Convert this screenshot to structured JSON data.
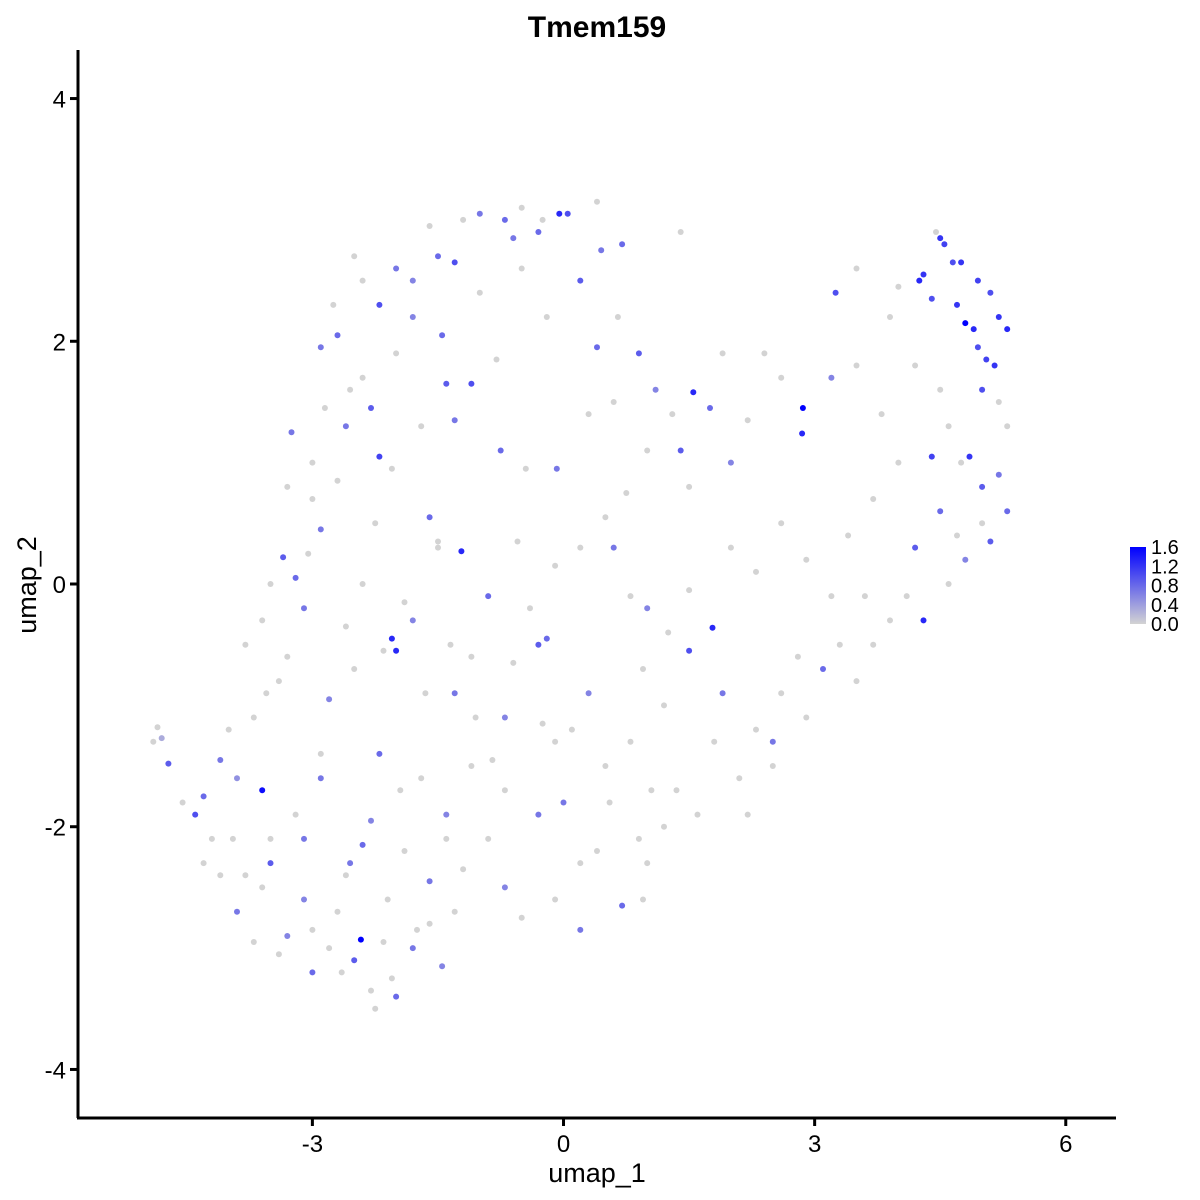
{
  "chart_data": {
    "type": "scatter",
    "title": "Tmem159",
    "xlabel": "umap_1",
    "ylabel": "umap_2",
    "xlim": [
      -5.8,
      6.6
    ],
    "ylim": [
      -4.4,
      4.4
    ],
    "xticks": [
      -3,
      0,
      3,
      6
    ],
    "xtick_labels": [
      "-3",
      "0",
      "3",
      "6"
    ],
    "yticks": [
      -4,
      -2,
      0,
      2,
      4
    ],
    "ytick_labels": [
      "-4",
      "-2",
      "0",
      "2",
      "4"
    ],
    "grid": false,
    "legend": {
      "placement": "right",
      "labels": [
        "1.6",
        "1.2",
        "0.8",
        "0.4",
        "0.0"
      ],
      "values": [
        1.6,
        1.2,
        0.8,
        0.4,
        0.0
      ],
      "min": 0.0,
      "max": 1.6
    },
    "colors": {
      "low": "#d3d3d3",
      "high": "#0000ff"
    },
    "points": [
      [
        -4.9,
        -1.3,
        0.0
      ],
      [
        -4.85,
        -1.18,
        0.0
      ],
      [
        -4.8,
        -1.27,
        0.3
      ],
      [
        -4.72,
        -1.48,
        0.9
      ],
      [
        -4.4,
        -1.9,
        1.0
      ],
      [
        -4.3,
        -1.75,
        0.8
      ],
      [
        -4.2,
        -2.1,
        0.0
      ],
      [
        -4.1,
        -1.45,
        0.7
      ],
      [
        -3.9,
        -1.6,
        0.5
      ],
      [
        -3.6,
        -1.7,
        1.5
      ],
      [
        -3.8,
        -2.4,
        0.0
      ],
      [
        -3.5,
        -2.3,
        0.9
      ],
      [
        -3.3,
        -2.9,
        0.6
      ],
      [
        -3.0,
        -3.2,
        0.8
      ],
      [
        -2.8,
        -3.0,
        0.0
      ],
      [
        -2.42,
        -2.93,
        1.6
      ],
      [
        -2.5,
        -3.1,
        0.9
      ],
      [
        -2.3,
        -3.35,
        0.0
      ],
      [
        -2.25,
        -3.5,
        0.0
      ],
      [
        -2.0,
        -3.4,
        0.8
      ],
      [
        -2.05,
        -3.25,
        0.0
      ],
      [
        -1.8,
        -3.0,
        0.7
      ],
      [
        -1.6,
        -2.8,
        0.0
      ],
      [
        -1.45,
        -3.15,
        0.6
      ],
      [
        -3.1,
        -2.1,
        0.7
      ],
      [
        -2.9,
        -1.6,
        0.7
      ],
      [
        -2.6,
        -2.4,
        0.0
      ],
      [
        -2.3,
        -1.95,
        0.6
      ],
      [
        -2.2,
        -1.4,
        0.8
      ],
      [
        -1.9,
        -2.2,
        0.0
      ],
      [
        -1.7,
        -1.6,
        0.0
      ],
      [
        -1.4,
        -1.9,
        0.6
      ],
      [
        -3.3,
        -0.6,
        0.0
      ],
      [
        -3.1,
        -0.2,
        0.7
      ],
      [
        -2.8,
        -0.95,
        0.6
      ],
      [
        -2.5,
        -0.7,
        0.0
      ],
      [
        -2.05,
        -0.45,
        1.3
      ],
      [
        -2.0,
        -0.55,
        1.3
      ],
      [
        -2.15,
        -0.55,
        0.0
      ],
      [
        -2.4,
        0.0,
        0.0
      ],
      [
        -2.9,
        0.45,
        0.7
      ],
      [
        -3.2,
        0.05,
        0.8
      ],
      [
        -3.35,
        0.22,
        0.9
      ],
      [
        -3.6,
        -0.3,
        0.0
      ],
      [
        -3.4,
        -0.8,
        0.0
      ],
      [
        -1.8,
        -0.3,
        0.6
      ],
      [
        -1.5,
        0.3,
        0.0
      ],
      [
        -1.3,
        -0.9,
        0.7
      ],
      [
        -1.22,
        0.27,
        1.3
      ],
      [
        -1.1,
        -0.6,
        0.0
      ],
      [
        -0.9,
        -0.1,
        0.8
      ],
      [
        -0.7,
        -1.1,
        0.6
      ],
      [
        -0.55,
        0.35,
        0.0
      ],
      [
        -0.3,
        -0.5,
        0.9
      ],
      [
        -0.2,
        -0.45,
        0.8
      ],
      [
        -0.1,
        -1.3,
        0.0
      ],
      [
        0.0,
        -1.8,
        0.7
      ],
      [
        0.2,
        -2.3,
        0.0
      ],
      [
        0.3,
        -0.9,
        0.6
      ],
      [
        0.5,
        -1.5,
        0.0
      ],
      [
        0.7,
        -2.65,
        0.8
      ],
      [
        0.9,
        -2.1,
        0.0
      ],
      [
        1.05,
        -1.7,
        0.0
      ],
      [
        0.6,
        0.3,
        0.7
      ],
      [
        0.8,
        -0.1,
        0.0
      ],
      [
        1.0,
        -0.2,
        0.6
      ],
      [
        1.2,
        -1.0,
        0.0
      ],
      [
        1.5,
        -0.55,
        1.0
      ],
      [
        1.78,
        -0.36,
        1.3
      ],
      [
        1.9,
        -0.9,
        0.7
      ],
      [
        2.1,
        -1.6,
        0.0
      ],
      [
        2.3,
        -1.2,
        0.0
      ],
      [
        2.5,
        -1.3,
        0.7
      ],
      [
        2.6,
        -0.9,
        0.0
      ],
      [
        2.9,
        -1.1,
        0.0
      ],
      [
        3.1,
        -0.7,
        0.8
      ],
      [
        3.5,
        -0.8,
        0.0
      ],
      [
        3.7,
        -0.5,
        0.0
      ],
      [
        3.9,
        -0.3,
        0.0
      ],
      [
        4.3,
        -0.3,
        1.3
      ],
      [
        4.6,
        0.0,
        0.0
      ],
      [
        4.8,
        0.2,
        0.6
      ],
      [
        5.1,
        0.35,
        0.9
      ],
      [
        5.0,
        0.8,
        0.9
      ],
      [
        5.2,
        0.9,
        0.7
      ],
      [
        5.3,
        0.6,
        0.8
      ],
      [
        4.5,
        0.6,
        0.8
      ],
      [
        4.2,
        0.3,
        0.9
      ],
      [
        4.4,
        1.05,
        1.1
      ],
      [
        4.75,
        1.0,
        0.0
      ],
      [
        4.85,
        1.05,
        1.2
      ],
      [
        4.6,
        1.3,
        0.0
      ],
      [
        5.0,
        1.6,
        1.0
      ],
      [
        5.15,
        1.8,
        1.2
      ],
      [
        5.05,
        1.85,
        1.1
      ],
      [
        4.95,
        1.95,
        1.0
      ],
      [
        4.9,
        2.1,
        1.3
      ],
      [
        4.8,
        2.15,
        1.6
      ],
      [
        4.7,
        2.3,
        1.2
      ],
      [
        5.2,
        2.2,
        1.2
      ],
      [
        5.3,
        2.1,
        1.3
      ],
      [
        5.1,
        2.4,
        1.0
      ],
      [
        4.95,
        2.5,
        1.1
      ],
      [
        4.75,
        2.65,
        1.2
      ],
      [
        4.65,
        2.65,
        1.0
      ],
      [
        4.5,
        2.85,
        1.2
      ],
      [
        4.55,
        2.8,
        1.1
      ],
      [
        4.45,
        2.9,
        0.0
      ],
      [
        4.3,
        2.55,
        1.2
      ],
      [
        4.25,
        2.5,
        1.3
      ],
      [
        4.4,
        2.35,
        1.0
      ],
      [
        4.0,
        2.45,
        0.0
      ],
      [
        3.9,
        2.2,
        0.0
      ],
      [
        3.5,
        2.6,
        0.0
      ],
      [
        3.25,
        2.4,
        1.0
      ],
      [
        3.5,
        1.8,
        0.0
      ],
      [
        3.2,
        1.7,
        0.6
      ],
      [
        2.86,
        1.45,
        1.6
      ],
      [
        2.85,
        1.24,
        1.3
      ],
      [
        2.6,
        1.7,
        0.0
      ],
      [
        2.2,
        1.35,
        0.0
      ],
      [
        2.0,
        1.0,
        0.6
      ],
      [
        1.75,
        1.45,
        0.8
      ],
      [
        1.55,
        1.58,
        1.3
      ],
      [
        1.3,
        1.4,
        0.0
      ],
      [
        1.4,
        1.1,
        0.9
      ],
      [
        1.1,
        1.6,
        0.6
      ],
      [
        0.9,
        1.9,
        0.9
      ],
      [
        0.65,
        2.2,
        0.0
      ],
      [
        0.7,
        2.8,
        0.8
      ],
      [
        0.45,
        2.75,
        0.7
      ],
      [
        0.2,
        2.5,
        0.9
      ],
      [
        0.05,
        3.05,
        1.0
      ],
      [
        -0.05,
        3.05,
        1.3
      ],
      [
        -0.3,
        2.9,
        0.8
      ],
      [
        -0.25,
        3.0,
        0.0
      ],
      [
        -0.6,
        2.85,
        0.7
      ],
      [
        -0.7,
        3.0,
        0.8
      ],
      [
        -1.0,
        3.05,
        0.7
      ],
      [
        -1.2,
        3.0,
        0.0
      ],
      [
        -1.5,
        2.7,
        0.8
      ],
      [
        -1.3,
        2.65,
        1.0
      ],
      [
        -1.8,
        2.5,
        0.6
      ],
      [
        -2.0,
        2.6,
        0.7
      ],
      [
        -2.2,
        2.3,
        1.0
      ],
      [
        -2.4,
        2.5,
        0.0
      ],
      [
        -2.7,
        2.05,
        0.8
      ],
      [
        -2.9,
        1.95,
        0.7
      ],
      [
        -2.4,
        1.7,
        0.0
      ],
      [
        -2.6,
        1.3,
        0.7
      ],
      [
        -2.2,
        1.05,
        1.1
      ],
      [
        -2.3,
        1.45,
        0.9
      ],
      [
        -1.8,
        2.2,
        0.6
      ],
      [
        -1.45,
        2.05,
        0.8
      ],
      [
        -1.4,
        1.65,
        0.9
      ],
      [
        -1.1,
        1.65,
        1.0
      ],
      [
        -1.3,
        1.35,
        0.7
      ],
      [
        -0.8,
        1.85,
        0.0
      ],
      [
        -0.75,
        1.1,
        0.8
      ],
      [
        -0.45,
        0.95,
        0.0
      ],
      [
        -0.08,
        0.95,
        0.7
      ],
      [
        0.4,
        1.95,
        0.8
      ],
      [
        0.6,
        1.5,
        0.0
      ],
      [
        -1.6,
        0.55,
        0.8
      ],
      [
        -1.5,
        0.35,
        0.0
      ],
      [
        -2.05,
        0.95,
        0.0
      ],
      [
        -2.7,
        0.85,
        0.0
      ],
      [
        -3.0,
        0.7,
        0.0
      ],
      [
        -3.25,
        1.25,
        0.7
      ],
      [
        -3.05,
        0.25,
        0.0
      ],
      [
        -3.5,
        0.0,
        0.0
      ],
      [
        -3.8,
        -0.5,
        0.0
      ],
      [
        -3.7,
        -1.1,
        0.0
      ],
      [
        -4.0,
        -1.2,
        0.0
      ],
      [
        -4.1,
        -2.4,
        0.0
      ],
      [
        -3.9,
        -2.7,
        0.7
      ],
      [
        -3.7,
        -2.95,
        0.0
      ],
      [
        -3.4,
        -3.05,
        0.0
      ],
      [
        -3.1,
        -2.6,
        0.6
      ],
      [
        -2.7,
        -2.7,
        0.0
      ],
      [
        -2.55,
        -2.3,
        0.7
      ],
      [
        -2.4,
        -2.15,
        0.8
      ],
      [
        -2.1,
        -2.6,
        0.0
      ],
      [
        -1.95,
        -1.7,
        0.0
      ],
      [
        -1.6,
        -2.45,
        0.7
      ],
      [
        -1.4,
        -2.1,
        0.0
      ],
      [
        -1.3,
        -2.7,
        0.0
      ],
      [
        -1.1,
        -1.5,
        0.0
      ],
      [
        -0.9,
        -2.1,
        0.0
      ],
      [
        -0.7,
        -2.5,
        0.6
      ],
      [
        -0.5,
        -2.75,
        0.0
      ],
      [
        -0.3,
        -1.9,
        0.7
      ],
      [
        -0.1,
        -2.6,
        0.0
      ],
      [
        0.2,
        -2.85,
        0.7
      ],
      [
        0.4,
        -2.2,
        0.0
      ],
      [
        0.55,
        -1.8,
        0.0
      ],
      [
        0.95,
        -2.6,
        0.0
      ],
      [
        1.0,
        -2.3,
        0.0
      ],
      [
        1.2,
        -2.0,
        0.0
      ],
      [
        1.35,
        -1.7,
        0.0
      ],
      [
        0.8,
        -1.3,
        0.0
      ],
      [
        0.95,
        -0.7,
        0.0
      ],
      [
        1.25,
        -0.4,
        0.0
      ],
      [
        1.5,
        -0.05,
        0.0
      ],
      [
        0.75,
        0.75,
        0.0
      ],
      [
        0.5,
        0.55,
        0.0
      ],
      [
        0.2,
        0.3,
        0.0
      ],
      [
        -0.1,
        0.15,
        0.0
      ],
      [
        -0.4,
        -0.2,
        0.0
      ],
      [
        -0.6,
        -0.65,
        0.0
      ],
      [
        -0.85,
        -1.45,
        0.0
      ],
      [
        -1.05,
        -1.1,
        0.0
      ],
      [
        -1.35,
        -0.5,
        0.0
      ],
      [
        -1.65,
        -0.9,
        0.0
      ],
      [
        -1.9,
        -0.15,
        0.0
      ],
      [
        -2.25,
        0.5,
        0.0
      ],
      [
        -2.6,
        -0.35,
        0.0
      ],
      [
        -2.9,
        -1.4,
        0.0
      ],
      [
        -3.2,
        -1.9,
        0.0
      ],
      [
        -3.5,
        -2.1,
        0.0
      ],
      [
        2.0,
        0.3,
        0.0
      ],
      [
        2.3,
        0.1,
        0.0
      ],
      [
        2.6,
        0.5,
        0.0
      ],
      [
        2.9,
        0.2,
        0.0
      ],
      [
        3.2,
        -0.1,
        0.0
      ],
      [
        3.4,
        0.4,
        0.0
      ],
      [
        3.7,
        0.7,
        0.0
      ],
      [
        4.0,
        1.0,
        0.0
      ],
      [
        3.8,
        1.4,
        0.0
      ],
      [
        4.2,
        1.8,
        0.0
      ],
      [
        4.5,
        1.6,
        0.0
      ],
      [
        2.4,
        1.9,
        0.0
      ],
      [
        1.9,
        1.9,
        0.0
      ],
      [
        1.5,
        0.8,
        0.0
      ],
      [
        1.0,
        1.1,
        0.0
      ],
      [
        0.3,
        1.4,
        0.0
      ],
      [
        -0.2,
        2.2,
        0.0
      ],
      [
        -0.5,
        2.6,
        0.0
      ],
      [
        -1.0,
        2.4,
        0.0
      ],
      [
        -1.7,
        1.3,
        0.0
      ],
      [
        -2.0,
        1.9,
        0.0
      ],
      [
        -2.55,
        1.6,
        0.0
      ],
      [
        -2.85,
        1.45,
        0.0
      ],
      [
        -3.0,
        1.0,
        0.0
      ],
      [
        1.4,
        2.9,
        0.0
      ],
      [
        0.4,
        3.15,
        0.0
      ],
      [
        -0.5,
        3.1,
        0.0
      ],
      [
        -1.6,
        2.95,
        0.0
      ],
      [
        -2.5,
        2.7,
        0.0
      ],
      [
        -2.75,
        2.3,
        0.0
      ],
      [
        -3.3,
        0.8,
        0.0
      ],
      [
        -3.55,
        -0.9,
        0.0
      ],
      [
        5.2,
        1.5,
        0.0
      ],
      [
        5.3,
        1.3,
        0.0
      ],
      [
        5.0,
        0.5,
        0.0
      ],
      [
        4.7,
        0.4,
        0.0
      ],
      [
        4.1,
        -0.1,
        0.0
      ],
      [
        3.6,
        -0.1,
        0.0
      ],
      [
        3.3,
        -0.5,
        0.0
      ],
      [
        2.8,
        -0.6,
        0.0
      ],
      [
        2.5,
        -1.5,
        0.0
      ],
      [
        2.2,
        -1.9,
        0.0
      ],
      [
        1.8,
        -1.3,
        0.0
      ],
      [
        1.6,
        -1.9,
        0.0
      ],
      [
        0.1,
        -1.2,
        0.0
      ],
      [
        -0.25,
        -1.15,
        0.0
      ],
      [
        -0.7,
        -1.7,
        0.0
      ],
      [
        -1.2,
        -2.35,
        0.0
      ],
      [
        -1.75,
        -2.85,
        0.0
      ],
      [
        -2.15,
        -2.95,
        0.0
      ],
      [
        -2.65,
        -3.2,
        0.0
      ],
      [
        -3.0,
        -2.85,
        0.0
      ],
      [
        -3.6,
        -2.5,
        0.0
      ],
      [
        -3.95,
        -2.1,
        0.0
      ],
      [
        -4.3,
        -2.3,
        0.0
      ],
      [
        -4.55,
        -1.8,
        0.0
      ]
    ]
  }
}
